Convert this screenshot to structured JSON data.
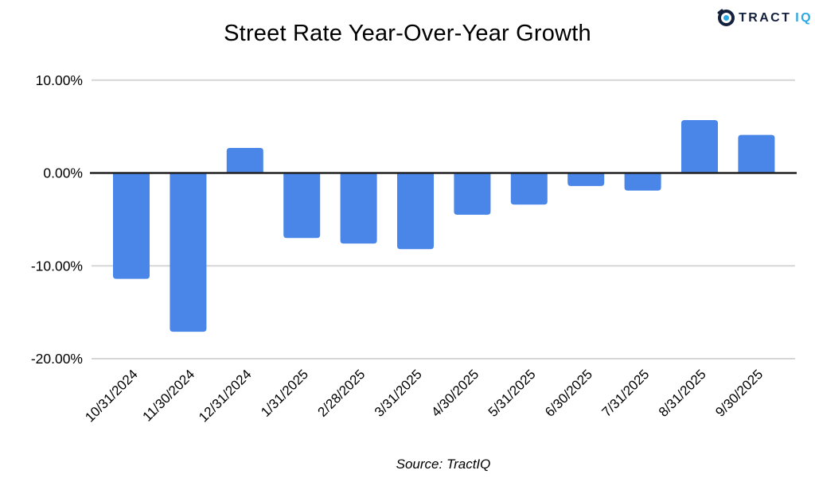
{
  "header": {
    "title": "Street Rate Year-Over-Year Growth",
    "logo": {
      "text_primary": "TRACT",
      "text_secondary": "IQ"
    }
  },
  "footer": {
    "source": "Source: TractIQ"
  },
  "colors": {
    "bar": "#4a86e8",
    "gridline": "#d6d6d6",
    "axis_line": "#212121",
    "text": "#000000",
    "logo_navy": "#14213d",
    "logo_cyan": "#2aaae2"
  },
  "chart_data": {
    "type": "bar",
    "title": "Street Rate Year-Over-Year Growth",
    "categories": [
      "10/31/2024",
      "11/30/2024",
      "12/31/2024",
      "1/31/2025",
      "2/28/2025",
      "3/31/2025",
      "4/30/2025",
      "5/31/2025",
      "6/30/2025",
      "7/31/2025",
      "8/31/2025",
      "9/30/2025"
    ],
    "values": [
      -11.4,
      -17.1,
      2.7,
      -7.0,
      -7.6,
      -8.2,
      -4.5,
      -3.4,
      -1.4,
      -1.9,
      5.7,
      4.1
    ],
    "xlabel": "",
    "ylabel": "",
    "ylim": [
      -20,
      10
    ],
    "yticks": [
      {
        "value": 10,
        "label": "10.00%"
      },
      {
        "value": 0,
        "label": "0.00%"
      },
      {
        "value": -10,
        "label": "-10.00%"
      },
      {
        "value": -20,
        "label": "-20.00%"
      }
    ],
    "grid": true,
    "legend": false,
    "source": "Source: TractIQ"
  }
}
